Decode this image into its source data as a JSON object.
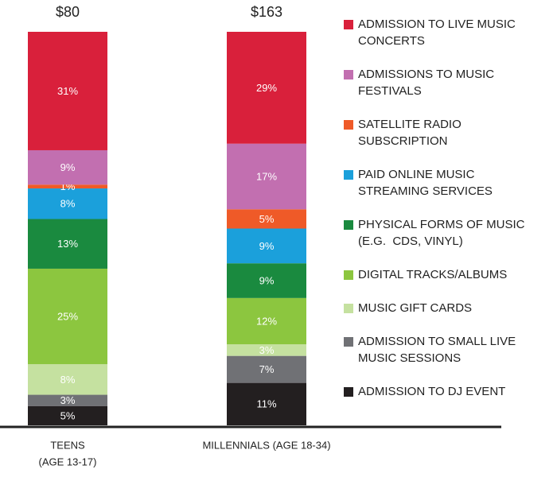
{
  "chart_data": {
    "type": "stacked-bar",
    "categories": [
      [
        "TEENS",
        "(AGE 13-17)"
      ],
      [
        "MILLENNIALS (AGE 18-34)"
      ]
    ],
    "totals": {
      "values": [
        80,
        163
      ],
      "value_labels": [
        "$80",
        "$163"
      ]
    },
    "series": [
      {
        "name": "ADMISSION TO LIVE MUSIC CONCERTS",
        "color": "#d9203b",
        "values": [
          31,
          29
        ],
        "value_labels": [
          "31%",
          "29%"
        ]
      },
      {
        "name": "ADMISSIONS TO MUSIC FESTIVALS",
        "color": "#c26fb0",
        "values": [
          9,
          17
        ],
        "value_labels": [
          "9%",
          "17%"
        ]
      },
      {
        "name": "SATELLITE RADIO SUBSCRIPTION",
        "color": "#ef5a28",
        "values": [
          1,
          5
        ],
        "value_labels": [
          "1%",
          "5%"
        ]
      },
      {
        "name": "PAID ONLINE MUSIC STREAMING SERVICES",
        "color": "#1ba0db",
        "values": [
          8,
          9
        ],
        "value_labels": [
          "8%",
          "9%"
        ]
      },
      {
        "name": "PHYSICAL FORMS OF MUSIC (E.G.  CDS, VINYL)",
        "color": "#1a8a3f",
        "values": [
          13,
          9
        ],
        "value_labels": [
          "13%",
          "9%"
        ]
      },
      {
        "name": "DIGITAL TRACKS/ALBUMS",
        "color": "#8cc63f",
        "values": [
          25,
          12
        ],
        "value_labels": [
          "25%",
          "12%"
        ]
      },
      {
        "name": "MUSIC GIFT CARDS",
        "color": "#c5e1a0",
        "values": [
          8,
          3
        ],
        "value_labels": [
          "8%",
          "3%"
        ]
      },
      {
        "name": "ADMISSION TO SMALL LIVE MUSIC SESSIONS",
        "color": "#707175",
        "values": [
          3,
          7
        ],
        "value_labels": [
          "3%",
          "7%"
        ]
      },
      {
        "name": "ADMISSION TO DJ EVENT",
        "color": "#231f20",
        "values": [
          5,
          11
        ],
        "value_labels": [
          "5%",
          "11%"
        ]
      }
    ]
  }
}
